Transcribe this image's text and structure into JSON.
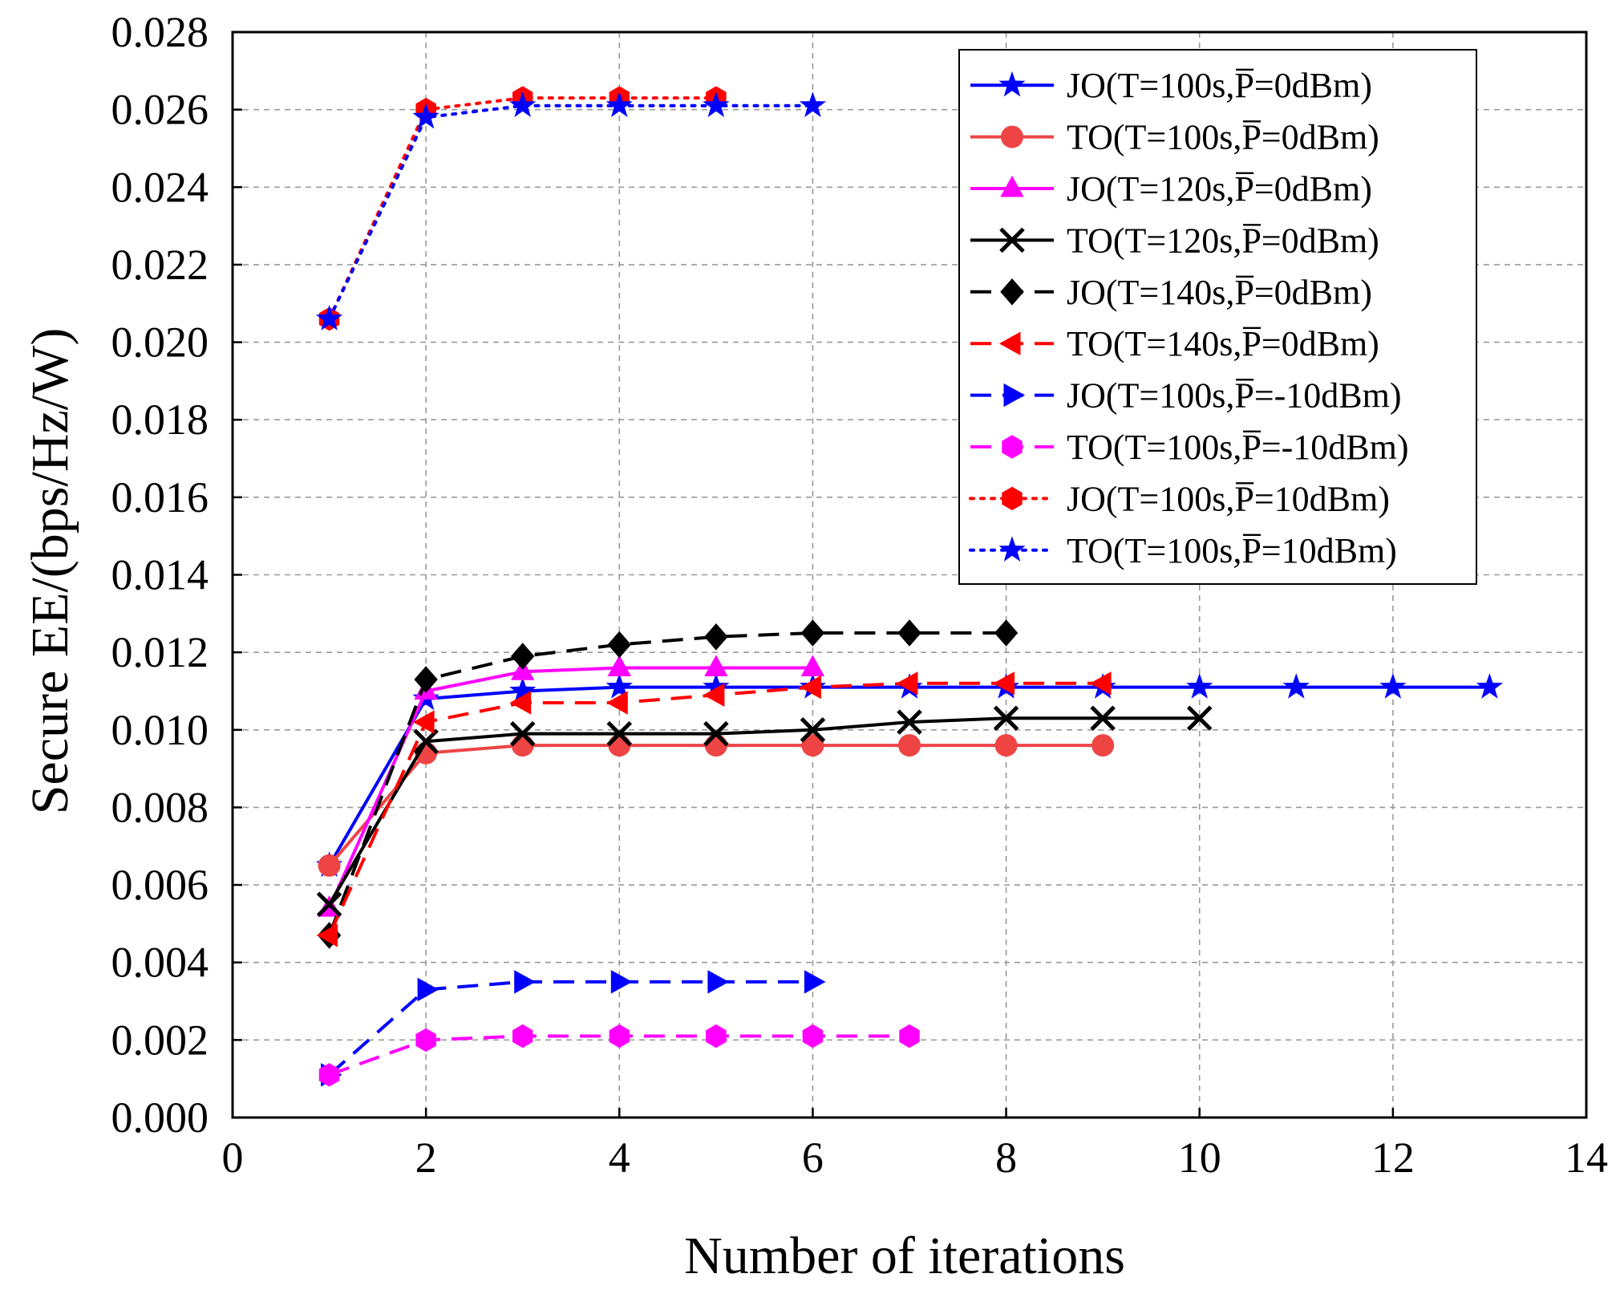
{
  "chart_data": {
    "type": "line",
    "xlabel": "Number of iterations",
    "ylabel": "Secure EE/(bps/Hz/W)",
    "xlim": [
      0,
      14
    ],
    "ylim": [
      0,
      0.028
    ],
    "grid": true,
    "legend_position": "top-right",
    "xticks": [
      "0",
      "2",
      "4",
      "6",
      "8",
      "10",
      "12",
      "14"
    ],
    "yticks": [
      "0.000",
      "0.002",
      "0.004",
      "0.006",
      "0.008",
      "0.010",
      "0.012",
      "0.014",
      "0.016",
      "0.018",
      "0.020",
      "0.022",
      "0.024",
      "0.026",
      "0.028"
    ],
    "series": [
      {
        "name": "JO(T=100s,P̅=0dBm)",
        "color": "#0000ff",
        "line": "solid",
        "marker": "star",
        "x": [
          1,
          2,
          3,
          4,
          5,
          6,
          7,
          8,
          9,
          10,
          11,
          12,
          13
        ],
        "y": [
          0.0065,
          0.0108,
          0.011,
          0.0111,
          0.0111,
          0.0111,
          0.0111,
          0.0111,
          0.0111,
          0.0111,
          0.0111,
          0.0111,
          0.0111
        ]
      },
      {
        "name": "TO(T=100s,P̅=0dBm)",
        "color": "#ee4444",
        "line": "solid",
        "marker": "circle",
        "x": [
          1,
          2,
          3,
          4,
          5,
          6,
          7,
          8,
          9
        ],
        "y": [
          0.0065,
          0.0094,
          0.0096,
          0.0096,
          0.0096,
          0.0096,
          0.0096,
          0.0096,
          0.0096
        ]
      },
      {
        "name": "JO(T=120s,P̅=0dBm)",
        "color": "#ff00ff",
        "line": "solid",
        "marker": "triangle-up",
        "x": [
          1,
          2,
          3,
          4,
          5,
          6
        ],
        "y": [
          0.0054,
          0.011,
          0.0115,
          0.0116,
          0.0116,
          0.0116
        ]
      },
      {
        "name": "TO(T=120s,P̅=0dBm)",
        "color": "#000000",
        "line": "solid",
        "marker": "x",
        "x": [
          1,
          2,
          3,
          4,
          5,
          6,
          7,
          8,
          9,
          10
        ],
        "y": [
          0.0055,
          0.0097,
          0.0099,
          0.0099,
          0.0099,
          0.01,
          0.0102,
          0.0103,
          0.0103,
          0.0103
        ]
      },
      {
        "name": "JO(T=140s,P̅=0dBm)",
        "color": "#000000",
        "line": "dashed",
        "marker": "diamond",
        "x": [
          1,
          2,
          3,
          4,
          5,
          6,
          7,
          8
        ],
        "y": [
          0.0047,
          0.0113,
          0.0119,
          0.0122,
          0.0124,
          0.0125,
          0.0125,
          0.0125
        ]
      },
      {
        "name": "TO(T=140s,P̅=0dBm)",
        "color": "#ff0000",
        "line": "dashed",
        "marker": "triangle-left",
        "x": [
          1,
          2,
          3,
          4,
          5,
          6,
          7,
          8,
          9
        ],
        "y": [
          0.0047,
          0.0102,
          0.0107,
          0.0107,
          0.0109,
          0.0111,
          0.0112,
          0.0112,
          0.0112
        ]
      },
      {
        "name": "JO(T=100s,P̅=-10dBm)",
        "color": "#0000ff",
        "line": "dashed",
        "marker": "triangle-right",
        "x": [
          1,
          2,
          3,
          4,
          5,
          6
        ],
        "y": [
          0.0011,
          0.0033,
          0.0035,
          0.0035,
          0.0035,
          0.0035
        ]
      },
      {
        "name": "TO(T=100s,P̅=-10dBm)",
        "color": "#ff00ff",
        "line": "dashed",
        "marker": "hexagon",
        "x": [
          1,
          2,
          3,
          4,
          5,
          6,
          7
        ],
        "y": [
          0.0011,
          0.002,
          0.0021,
          0.0021,
          0.0021,
          0.0021,
          0.0021
        ]
      },
      {
        "name": "JO(T=100s,P̅=10dBm)",
        "color": "#ff0000",
        "line": "dotted",
        "marker": "hexagon",
        "x": [
          1,
          2,
          3,
          4,
          5
        ],
        "y": [
          0.0206,
          0.026,
          0.0263,
          0.0263,
          0.0263
        ]
      },
      {
        "name": "TO(T=100s,P̅=10dBm)",
        "color": "#0000ff",
        "line": "dotted",
        "marker": "star",
        "x": [
          1,
          2,
          3,
          4,
          5,
          6
        ],
        "y": [
          0.0206,
          0.0258,
          0.0261,
          0.0261,
          0.0261,
          0.0261
        ]
      }
    ]
  }
}
